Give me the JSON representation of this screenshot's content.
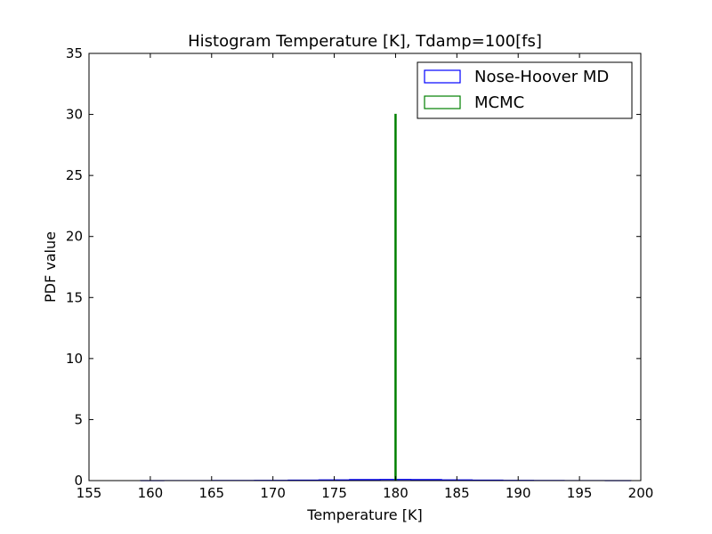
{
  "chart_data": {
    "type": "histogram",
    "title": "Histogram Temperature [K], Tdamp=100[fs]",
    "xlabel": "Temperature [K]",
    "ylabel": "PDF value",
    "xlim": [
      155,
      200
    ],
    "ylim": [
      0,
      35
    ],
    "xticks": [
      155,
      160,
      165,
      170,
      175,
      180,
      185,
      190,
      195,
      200
    ],
    "yticks": [
      0,
      5,
      10,
      15,
      20,
      25,
      30,
      35
    ],
    "grid": false,
    "legend_position": "top-right",
    "series": [
      {
        "name": "Nose-Hoover MD",
        "style": "step-outline",
        "color": "#0000ff",
        "x": [
          159.2,
          163,
          167,
          170,
          172.5,
          175,
          177.5,
          180,
          182.5,
          185,
          187.5,
          190,
          192.5,
          195,
          199.2
        ],
        "y": [
          0.002,
          0.004,
          0.01,
          0.02,
          0.04,
          0.06,
          0.08,
          0.09,
          0.08,
          0.06,
          0.04,
          0.02,
          0.01,
          0.004,
          0.002
        ]
      },
      {
        "name": "MCMC",
        "style": "step-outline",
        "color": "#008000",
        "x": [
          180
        ],
        "y": [
          30
        ]
      }
    ]
  }
}
